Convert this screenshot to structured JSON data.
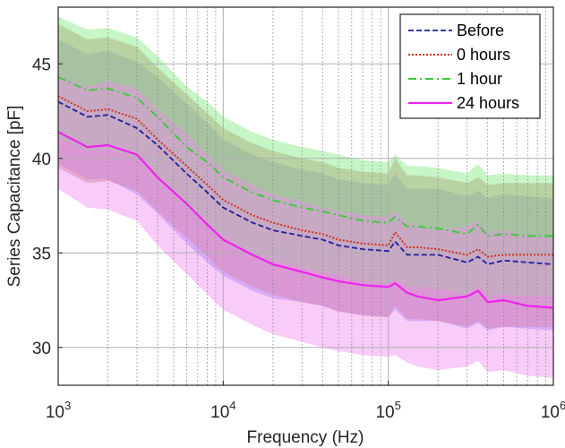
{
  "chart_data": {
    "type": "line",
    "title": "",
    "xlabel": "Frequency (Hz)",
    "ylabel": "Series Capacitance [pF]",
    "xscale": "log",
    "xlim": [
      1000,
      1000000
    ],
    "ylim": [
      28,
      48
    ],
    "x_ticks": [
      {
        "base": "10",
        "exp": "3"
      },
      {
        "base": "10",
        "exp": "4"
      },
      {
        "base": "10",
        "exp": "5"
      },
      {
        "base": "10",
        "exp": "6"
      }
    ],
    "y_ticks": [
      "30",
      "35",
      "40",
      "45"
    ],
    "grid": "on (major and minor x, major y)",
    "legend_position": "top-right",
    "x": [
      1000,
      1500,
      2000,
      3000,
      4000,
      6000,
      8000,
      10000,
      15000,
      20000,
      30000,
      40000,
      50000,
      70000,
      100000,
      110000,
      130000,
      150000,
      200000,
      300000,
      350000,
      400000,
      500000,
      700000,
      1000000
    ],
    "series": [
      {
        "name": "Before",
        "color": "#1f1f9e",
        "dash": "6,3",
        "width": 1.8,
        "values": [
          43.0,
          42.2,
          42.3,
          41.6,
          40.7,
          39.2,
          38.2,
          37.4,
          36.6,
          36.2,
          35.9,
          35.7,
          35.4,
          35.2,
          35.1,
          35.6,
          34.9,
          34.9,
          34.9,
          34.5,
          34.8,
          34.4,
          34.6,
          34.5,
          34.4
        ],
        "band": [
          3.3,
          3.3,
          3.4,
          3.5,
          3.6,
          3.7,
          3.7,
          3.6,
          3.6,
          3.6,
          3.5,
          3.5,
          3.5,
          3.5,
          3.5,
          3.6,
          3.5,
          3.5,
          3.5,
          3.5,
          3.5,
          3.5,
          3.5,
          3.5,
          3.5
        ],
        "fill": "#7f7fff"
      },
      {
        "name": "0 hours",
        "color": "#d0311c",
        "dash": "2,2",
        "width": 2,
        "values": [
          43.3,
          42.5,
          42.6,
          42.1,
          41.0,
          39.6,
          38.6,
          37.8,
          37.0,
          36.6,
          36.2,
          36.0,
          35.7,
          35.5,
          35.4,
          36.1,
          35.3,
          35.3,
          35.2,
          34.9,
          35.2,
          34.8,
          34.9,
          34.9,
          34.9
        ],
        "band": [
          3.8,
          3.8,
          3.8,
          3.8,
          3.8,
          3.8,
          3.8,
          3.8,
          3.8,
          3.8,
          3.8,
          3.8,
          3.8,
          3.8,
          3.8,
          3.9,
          3.8,
          3.8,
          3.8,
          3.8,
          3.8,
          3.8,
          3.8,
          3.8,
          3.8
        ],
        "fill": "#c8786a"
      },
      {
        "name": "1 hour",
        "color": "#3ccc3c",
        "dash": "9,4,2,4",
        "width": 2,
        "values": [
          44.3,
          43.6,
          43.7,
          43.2,
          42.2,
          40.6,
          39.8,
          39.0,
          38.2,
          37.8,
          37.4,
          37.2,
          37.0,
          36.7,
          36.6,
          36.9,
          36.4,
          36.4,
          36.3,
          36.0,
          36.5,
          35.9,
          36.0,
          35.9,
          35.9
        ],
        "band": [
          3.2,
          3.2,
          3.2,
          3.2,
          3.2,
          3.2,
          3.2,
          3.2,
          3.2,
          3.2,
          3.2,
          3.2,
          3.2,
          3.2,
          3.2,
          3.3,
          3.2,
          3.2,
          3.2,
          3.2,
          3.2,
          3.2,
          3.2,
          3.2,
          3.2
        ],
        "fill": "#80e880"
      },
      {
        "name": "24 hours",
        "color": "#ee22ee",
        "dash": "",
        "width": 2.2,
        "values": [
          41.4,
          40.6,
          40.7,
          40.2,
          39.0,
          37.6,
          36.5,
          35.7,
          34.9,
          34.4,
          34.0,
          33.7,
          33.5,
          33.3,
          33.2,
          33.4,
          32.9,
          32.7,
          32.5,
          32.7,
          33.0,
          32.4,
          32.5,
          32.2,
          32.1
        ],
        "band": [
          3.0,
          3.2,
          3.4,
          3.5,
          3.6,
          3.7,
          3.7,
          3.7,
          3.7,
          3.7,
          3.7,
          3.7,
          3.7,
          3.7,
          3.7,
          3.8,
          3.7,
          3.7,
          3.7,
          3.7,
          3.7,
          3.7,
          3.7,
          3.7,
          3.7
        ],
        "fill": "#f08cf0"
      }
    ]
  }
}
